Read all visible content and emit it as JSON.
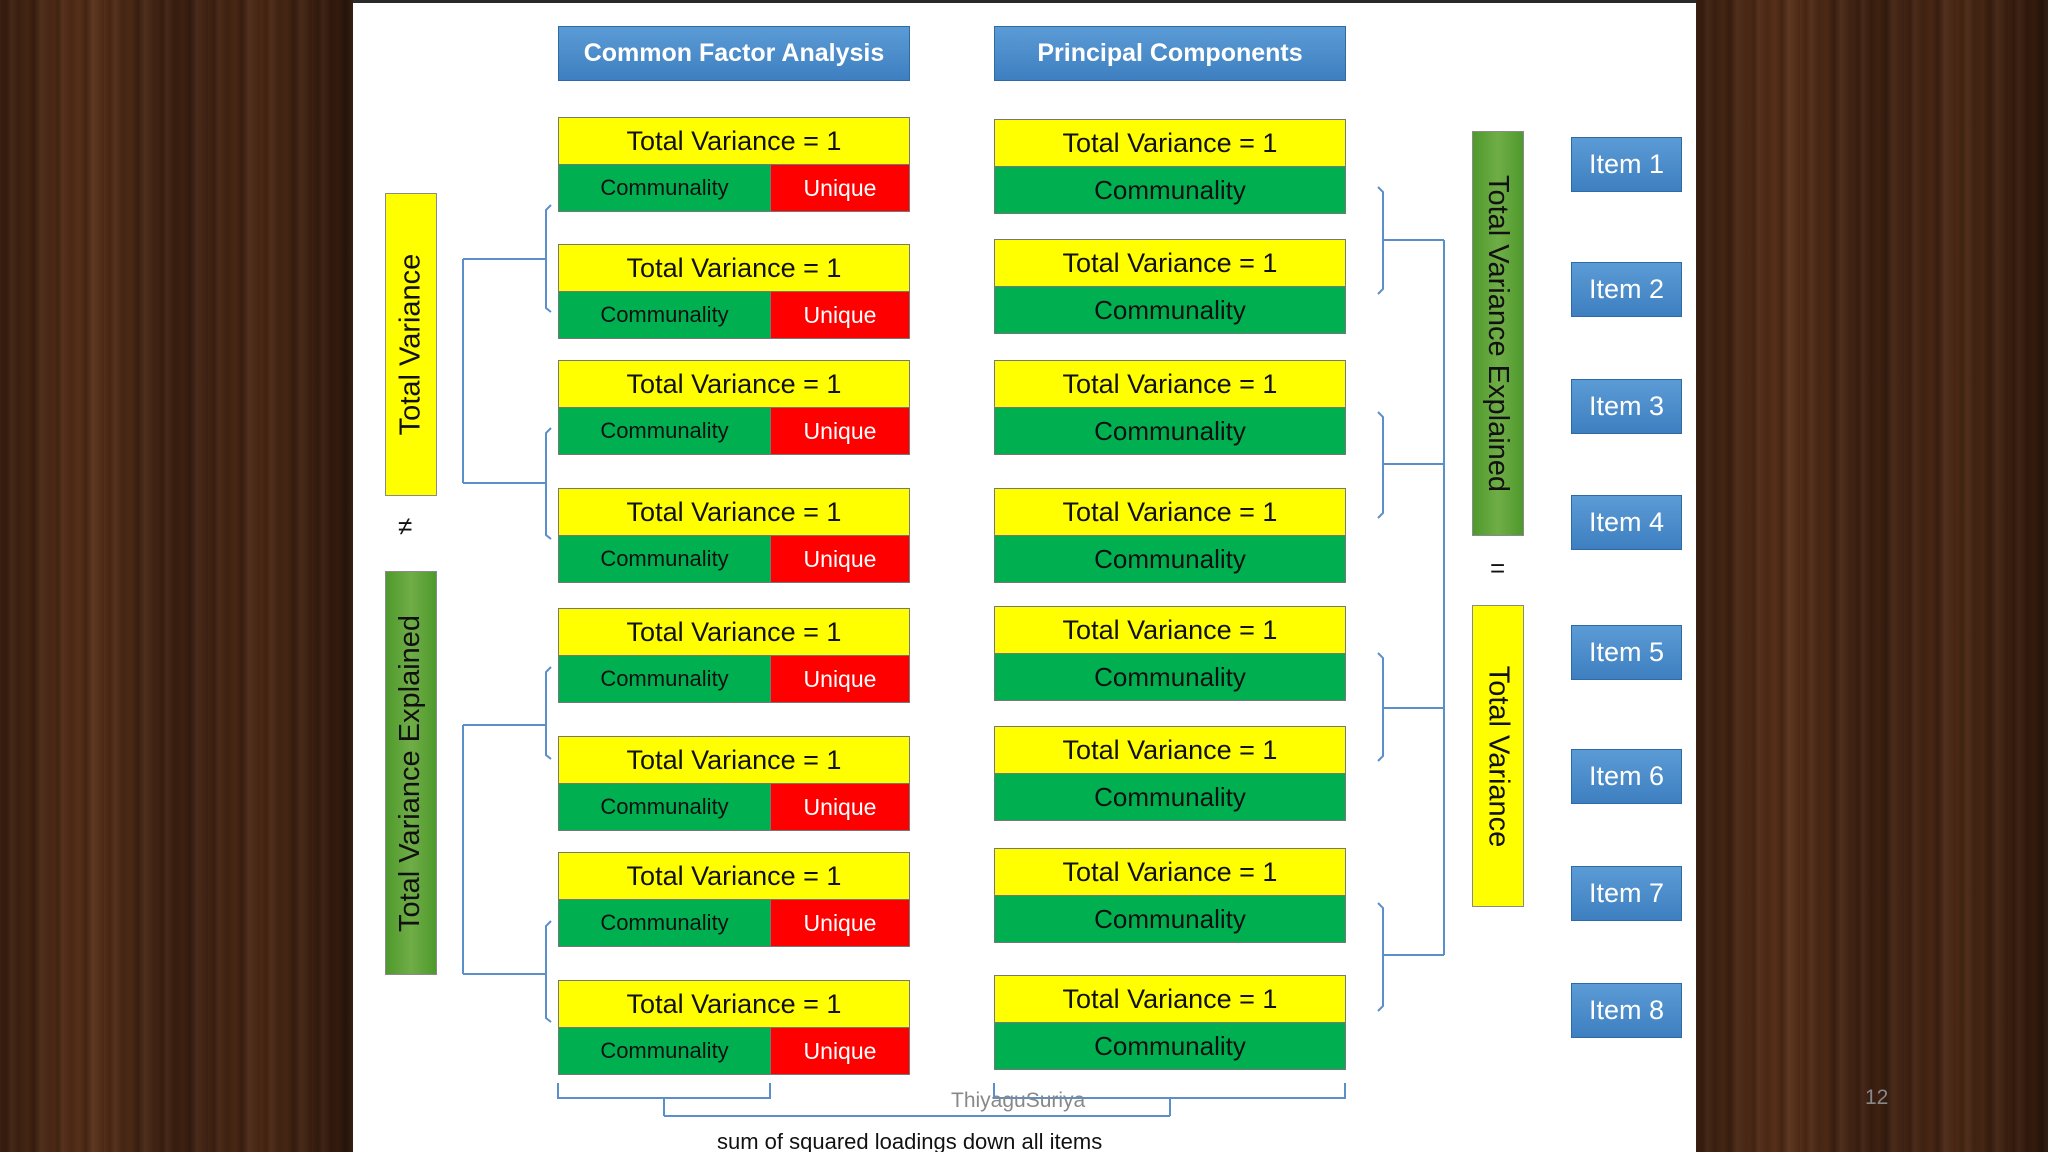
{
  "headers": {
    "cfa": "Common Factor Analysis",
    "pca": "Principal Components"
  },
  "block_text": {
    "total_variance": "Total Variance = 1",
    "communality": "Communality",
    "unique": "Unique"
  },
  "left_labels": {
    "top": "Total Variance",
    "symbol": "≠",
    "bottom": "Total Variance Explained"
  },
  "right_labels": {
    "top": "Total Variance Explained",
    "symbol": "=",
    "bottom": "Total Variance"
  },
  "items": [
    "Item 1",
    "Item 2",
    "Item 3",
    "Item 4",
    "Item 5",
    "Item 6",
    "Item 7",
    "Item 8"
  ],
  "footer": "sum of squared loadings down all items",
  "credit": "ThiyaguSuriya",
  "page_number": "12",
  "colors": {
    "header_blue": "#5b9bd5",
    "total_variance_yellow": "#ffff00",
    "communality_green": "#00b050",
    "unique_red": "#ff0000",
    "bracket_blue": "#5b8fc9"
  }
}
